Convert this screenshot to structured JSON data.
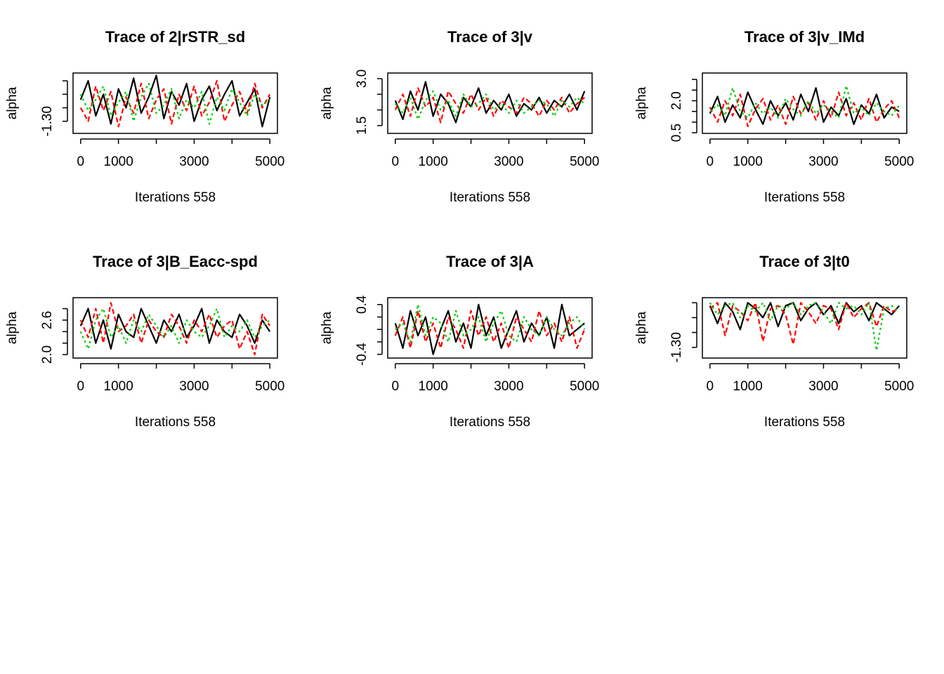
{
  "chart_data": [
    {
      "type": "line",
      "title": "Trace of 2|rSTR_sd",
      "xlabel": "Iterations 558",
      "ylabel": "alpha",
      "x": [
        0,
        200,
        400,
        600,
        800,
        1000,
        1200,
        1400,
        1600,
        1800,
        2000,
        2200,
        2400,
        2600,
        2800,
        3000,
        3200,
        3400,
        3600,
        3800,
        4000,
        4200,
        4400,
        4600,
        4800,
        5000
      ],
      "xlim": [
        -200,
        5200
      ],
      "xticks": [
        0,
        1000,
        {
          "value": 2000,
          "label": null
        },
        3000,
        {
          "value": 4000,
          "label": null
        },
        5000
      ],
      "ylim": [
        -1.345,
        -1.121
      ],
      "yticks": [
        {
          "value": -1.3,
          "label": "-1.30"
        },
        {
          "value": -1.25,
          "label": null
        },
        {
          "value": -1.2,
          "label": null
        },
        {
          "value": -1.15,
          "label": null
        }
      ],
      "series": [
        {
          "color": "#000000",
          "linestyle": "solid",
          "values": [
            -1.22,
            -1.15,
            -1.28,
            -1.2,
            -1.31,
            -1.18,
            -1.25,
            -1.14,
            -1.27,
            -1.21,
            -1.13,
            -1.29,
            -1.19,
            -1.24,
            -1.16,
            -1.3,
            -1.22,
            -1.17,
            -1.26,
            -1.2,
            -1.15,
            -1.28,
            -1.23,
            -1.18,
            -1.32,
            -1.21
          ]
        },
        {
          "color": "#ff0000",
          "linestyle": "dashed",
          "values": [
            -1.25,
            -1.3,
            -1.17,
            -1.26,
            -1.19,
            -1.32,
            -1.21,
            -1.27,
            -1.16,
            -1.29,
            -1.22,
            -1.18,
            -1.31,
            -1.2,
            -1.26,
            -1.17,
            -1.28,
            -1.23,
            -1.15,
            -1.3,
            -1.24,
            -1.19,
            -1.27,
            -1.16,
            -1.25,
            -1.2
          ]
        },
        {
          "color": "#00cd00",
          "linestyle": "dotted",
          "values": [
            -1.2,
            -1.26,
            -1.22,
            -1.17,
            -1.28,
            -1.23,
            -1.19,
            -1.3,
            -1.21,
            -1.16,
            -1.27,
            -1.24,
            -1.18,
            -1.29,
            -1.22,
            -1.25,
            -1.19,
            -1.31,
            -1.21,
            -1.26,
            -1.18,
            -1.23,
            -1.28,
            -1.2,
            -1.24,
            -1.22
          ]
        }
      ]
    },
    {
      "type": "line",
      "title": "Trace of 3|v",
      "xlabel": "Iterations 558",
      "ylabel": "alpha",
      "x": [
        0,
        200,
        400,
        600,
        800,
        1000,
        1200,
        1400,
        1600,
        1800,
        2000,
        2200,
        2400,
        2600,
        2800,
        3000,
        3200,
        3400,
        3600,
        3800,
        4000,
        4200,
        4400,
        4600,
        4800,
        5000
      ],
      "xlim": [
        -200,
        5200
      ],
      "xticks": [
        0,
        1000,
        {
          "value": 2000,
          "label": null
        },
        3000,
        {
          "value": 4000,
          "label": null
        },
        5000
      ],
      "ylim": [
        1.25,
        3.18
      ],
      "yticks": [
        {
          "value": 1.5,
          "label": "1.5"
        },
        {
          "value": 2.0,
          "label": null
        },
        {
          "value": 2.5,
          "label": null
        },
        {
          "value": 3.0,
          "label": "3.0"
        }
      ],
      "series": [
        {
          "color": "#000000",
          "linestyle": "solid",
          "values": [
            2.3,
            1.7,
            2.6,
            2.0,
            2.9,
            1.8,
            2.5,
            2.2,
            1.6,
            2.4,
            2.1,
            2.7,
            1.9,
            2.3,
            2.0,
            2.5,
            1.8,
            2.2,
            2.0,
            2.4,
            1.9,
            2.3,
            2.1,
            2.5,
            2.0,
            2.6
          ]
        },
        {
          "color": "#ff0000",
          "linestyle": "dashed",
          "values": [
            2.0,
            2.5,
            1.8,
            2.7,
            2.1,
            2.4,
            1.6,
            2.6,
            2.2,
            1.9,
            2.5,
            2.0,
            2.4,
            1.8,
            2.3,
            2.1,
            1.9,
            2.4,
            2.2,
            1.8,
            2.3,
            2.0,
            2.4,
            1.9,
            2.2,
            2.4
          ]
        },
        {
          "color": "#00cd00",
          "linestyle": "dotted",
          "values": [
            2.2,
            1.9,
            2.4,
            1.7,
            2.3,
            2.6,
            2.0,
            2.3,
            1.8,
            2.5,
            2.1,
            2.2,
            2.5,
            2.0,
            2.2,
            1.9,
            2.3,
            1.9,
            2.1,
            2.3,
            2.2,
            1.8,
            2.3,
            2.1,
            2.4,
            2.2
          ]
        }
      ]
    },
    {
      "type": "line",
      "title": "Trace of 3|v_IMd",
      "xlabel": "Iterations 558",
      "ylabel": "alpha",
      "x": [
        0,
        200,
        400,
        600,
        800,
        1000,
        1200,
        1400,
        1600,
        1800,
        2000,
        2200,
        2400,
        2600,
        2800,
        3000,
        3200,
        3400,
        3600,
        3800,
        4000,
        4200,
        4400,
        4600,
        4800,
        5000
      ],
      "xlim": [
        -200,
        5200
      ],
      "xticks": [
        0,
        1000,
        {
          "value": 2000,
          "label": null
        },
        3000,
        {
          "value": 4000,
          "label": null
        },
        5000
      ],
      "ylim": [
        0.47,
        3.3
      ],
      "yticks": [
        {
          "value": 0.5,
          "label": "0.5"
        },
        {
          "value": 1.0,
          "label": null
        },
        {
          "value": 1.5,
          "label": null
        },
        {
          "value": 2.0,
          "label": "2.0"
        },
        {
          "value": 2.5,
          "label": null
        },
        {
          "value": 3.0,
          "label": null
        }
      ],
      "series": [
        {
          "color": "#000000",
          "linestyle": "solid",
          "values": [
            1.4,
            2.2,
            1.0,
            1.8,
            1.2,
            2.4,
            1.6,
            0.9,
            2.0,
            1.3,
            1.9,
            1.1,
            2.3,
            1.5,
            2.6,
            1.0,
            1.7,
            1.3,
            2.1,
            0.9,
            1.8,
            1.4,
            2.3,
            1.2,
            1.7,
            1.5
          ]
        },
        {
          "color": "#ff0000",
          "linestyle": "dashed",
          "values": [
            1.7,
            1.0,
            2.0,
            1.3,
            2.3,
            0.8,
            1.6,
            2.1,
            1.1,
            1.8,
            0.9,
            2.2,
            1.4,
            1.9,
            1.1,
            2.0,
            1.2,
            2.4,
            1.3,
            1.9,
            1.1,
            2.1,
            1.0,
            1.6,
            2.0,
            1.2
          ]
        },
        {
          "color": "#00cd00",
          "linestyle": "dotted",
          "values": [
            1.5,
            1.8,
            1.3,
            2.6,
            1.5,
            1.2,
            1.9,
            1.4,
            1.7,
            1.2,
            2.1,
            1.6,
            1.3,
            2.0,
            1.4,
            1.8,
            1.5,
            1.2,
            2.7,
            1.4,
            1.7,
            1.3,
            1.9,
            1.5,
            1.3,
            1.8
          ]
        }
      ]
    },
    {
      "type": "line",
      "title": "Trace of 3|B_Eacc-spd",
      "xlabel": "Iterations 558",
      "ylabel": "alpha",
      "x": [
        0,
        200,
        400,
        600,
        800,
        1000,
        1200,
        1400,
        1600,
        1800,
        2000,
        2200,
        2400,
        2600,
        2800,
        3000,
        3200,
        3400,
        3600,
        3800,
        4000,
        4200,
        4400,
        4600,
        4800,
        5000
      ],
      "xlim": [
        -200,
        5200
      ],
      "xticks": [
        0,
        1000,
        {
          "value": 2000,
          "label": null
        },
        3000,
        {
          "value": 4000,
          "label": null
        },
        5000
      ],
      "ylim": [
        1.94,
        2.99
      ],
      "yticks": [
        {
          "value": 2.0,
          "label": "2.0"
        },
        {
          "value": 2.2,
          "label": null
        },
        {
          "value": 2.4,
          "label": null
        },
        {
          "value": 2.6,
          "label": "2.6"
        },
        {
          "value": 2.8,
          "label": null
        }
      ],
      "series": [
        {
          "color": "#000000",
          "linestyle": "solid",
          "values": [
            2.5,
            2.8,
            2.2,
            2.6,
            2.1,
            2.7,
            2.4,
            2.3,
            2.8,
            2.5,
            2.2,
            2.6,
            2.4,
            2.7,
            2.3,
            2.5,
            2.8,
            2.2,
            2.6,
            2.4,
            2.3,
            2.7,
            2.5,
            2.2,
            2.6,
            2.4
          ]
        },
        {
          "color": "#ff0000",
          "linestyle": "dashed",
          "values": [
            2.6,
            2.3,
            2.8,
            2.2,
            2.9,
            2.4,
            2.5,
            2.7,
            2.2,
            2.6,
            2.4,
            2.3,
            2.7,
            2.5,
            2.2,
            2.6,
            2.4,
            2.7,
            2.3,
            2.5,
            2.6,
            2.1,
            2.4,
            2.0,
            2.7,
            2.5
          ]
        },
        {
          "color": "#00cd00",
          "linestyle": "dotted",
          "values": [
            2.4,
            2.1,
            2.6,
            2.8,
            2.3,
            2.5,
            2.2,
            2.6,
            2.4,
            2.7,
            2.5,
            2.3,
            2.5,
            2.2,
            2.6,
            2.4,
            2.3,
            2.5,
            2.8,
            2.3,
            2.5,
            2.4,
            2.6,
            2.3,
            2.5,
            2.6
          ]
        }
      ]
    },
    {
      "type": "line",
      "title": "Trace of 3|A",
      "xlabel": "Iterations 558",
      "ylabel": "alpha",
      "x": [
        0,
        200,
        400,
        600,
        800,
        1000,
        1200,
        1400,
        1600,
        1800,
        2000,
        2200,
        2400,
        2600,
        2800,
        3000,
        3200,
        3400,
        3600,
        3800,
        4000,
        4200,
        4400,
        4600,
        4800,
        5000
      ],
      "xlim": [
        -200,
        5200
      ],
      "xticks": [
        0,
        1000,
        {
          "value": 2000,
          "label": null
        },
        3000,
        {
          "value": 4000,
          "label": null
        },
        5000
      ],
      "ylim": [
        -0.46,
        0.51
      ],
      "yticks": [
        {
          "value": -0.4,
          "label": "-0.4"
        },
        {
          "value": -0.2,
          "label": null
        },
        {
          "value": 0.0,
          "label": null
        },
        {
          "value": 0.2,
          "label": null
        },
        {
          "value": 0.4,
          "label": "0.4"
        }
      ],
      "series": [
        {
          "color": "#000000",
          "linestyle": "solid",
          "values": [
            0.1,
            -0.3,
            0.3,
            -0.1,
            0.2,
            -0.4,
            0.0,
            0.3,
            -0.2,
            0.1,
            -0.3,
            0.4,
            -0.1,
            0.2,
            -0.3,
            0.0,
            0.3,
            -0.2,
            0.1,
            -0.1,
            0.2,
            -0.3,
            0.4,
            -0.1,
            0.0,
            0.1
          ]
        },
        {
          "color": "#ff0000",
          "linestyle": "dashed",
          "values": [
            -0.1,
            0.2,
            -0.3,
            0.3,
            -0.2,
            0.1,
            -0.3,
            0.2,
            0.0,
            -0.3,
            0.3,
            -0.1,
            0.2,
            -0.2,
            0.1,
            -0.3,
            0.2,
            0.0,
            -0.2,
            0.3,
            -0.1,
            0.1,
            -0.2,
            0.2,
            -0.3,
            0.0
          ]
        },
        {
          "color": "#00cd00",
          "linestyle": "dotted",
          "values": [
            0.0,
            0.1,
            -0.2,
            0.4,
            -0.1,
            0.2,
            0.1,
            -0.2,
            0.3,
            -0.1,
            0.0,
            0.2,
            -0.2,
            0.1,
            0.3,
            -0.1,
            -0.2,
            0.2,
            0.0,
            -0.1,
            0.2,
            0.0,
            -0.1,
            0.1,
            0.2,
            0.0
          ]
        }
      ]
    },
    {
      "type": "line",
      "title": "Trace of 3|t0",
      "xlabel": "Iterations 558",
      "ylabel": "alpha",
      "x": [
        0,
        200,
        400,
        600,
        800,
        1000,
        1200,
        1400,
        1600,
        1800,
        2000,
        2200,
        2400,
        2600,
        2800,
        3000,
        3200,
        3400,
        3600,
        3800,
        4000,
        4200,
        4400,
        4600,
        4800,
        5000
      ],
      "xlim": [
        -200,
        5200
      ],
      "xticks": [
        0,
        1000,
        {
          "value": 2000,
          "label": null
        },
        3000,
        {
          "value": 4000,
          "label": null
        },
        5000
      ],
      "ylim": [
        -1.336,
        -1.133
      ],
      "yticks": [
        {
          "value": -1.3,
          "label": "-1.30"
        },
        {
          "value": -1.25,
          "label": null
        },
        {
          "value": -1.2,
          "label": null
        },
        {
          "value": -1.15,
          "label": null
        }
      ],
      "series": [
        {
          "color": "#000000",
          "linestyle": "solid",
          "values": [
            -1.16,
            -1.22,
            -1.15,
            -1.18,
            -1.24,
            -1.15,
            -1.17,
            -1.2,
            -1.15,
            -1.23,
            -1.16,
            -1.15,
            -1.21,
            -1.17,
            -1.15,
            -1.19,
            -1.16,
            -1.22,
            -1.15,
            -1.18,
            -1.16,
            -1.21,
            -1.15,
            -1.17,
            -1.19,
            -1.16
          ]
        },
        {
          "color": "#ff0000",
          "linestyle": "dashed",
          "values": [
            -1.17,
            -1.15,
            -1.26,
            -1.16,
            -1.18,
            -1.21,
            -1.15,
            -1.28,
            -1.17,
            -1.16,
            -1.19,
            -1.29,
            -1.15,
            -1.18,
            -1.22,
            -1.16,
            -1.17,
            -1.24,
            -1.15,
            -1.2,
            -1.17,
            -1.15,
            -1.23,
            -1.16,
            -1.18,
            -1.17
          ]
        },
        {
          "color": "#00cd00",
          "linestyle": "dotted",
          "values": [
            -1.15,
            -1.19,
            -1.16,
            -1.15,
            -1.2,
            -1.16,
            -1.18,
            -1.15,
            -1.21,
            -1.16,
            -1.17,
            -1.15,
            -1.19,
            -1.16,
            -1.15,
            -1.18,
            -1.22,
            -1.15,
            -1.17,
            -1.16,
            -1.19,
            -1.15,
            -1.31,
            -1.17,
            -1.16,
            -1.18
          ]
        }
      ]
    }
  ]
}
